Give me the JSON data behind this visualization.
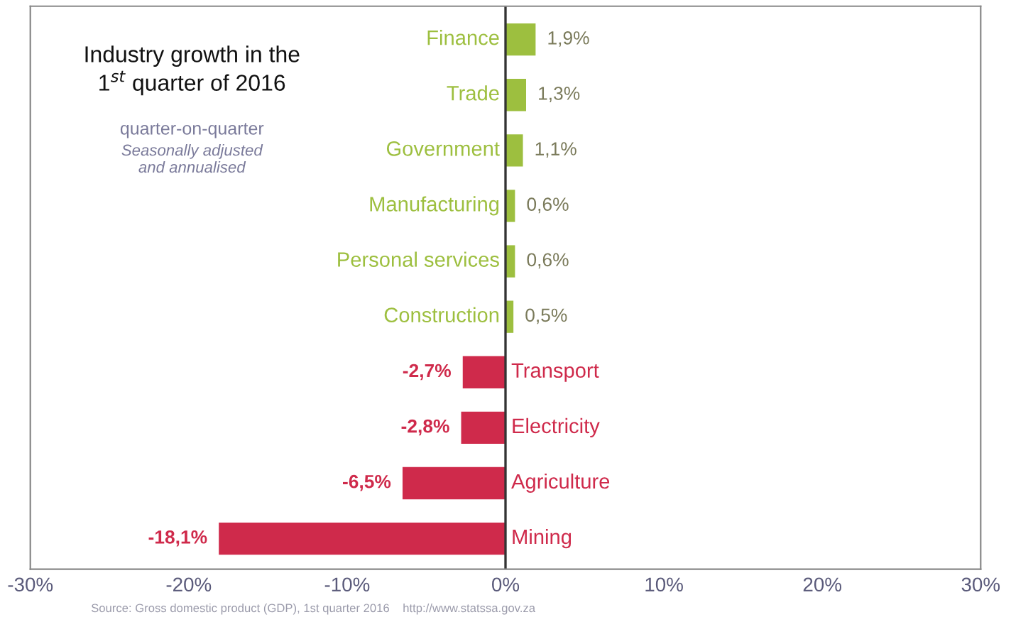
{
  "chart_data": {
    "type": "bar",
    "orientation": "horizontal",
    "title": "Industry growth in the\n1$^{st}$ quarter of 2016",
    "subtitle": "quarter-on-quarter",
    "annotations": [
      "Seasonally adjusted\nand annualised",
      "Source: Gross domestic product (GDP), 1st quarter 2016    http://www.statssa.gov.za"
    ],
    "categories": [
      "Finance",
      "Trade",
      "Government",
      "Manufacturing",
      "Personal services",
      "Construction",
      "Transport",
      "Electricity",
      "Agriculture",
      "Mining"
    ],
    "values": [
      1.9,
      1.3,
      1.1,
      0.6,
      0.6,
      0.5,
      -2.7,
      -2.8,
      -6.5,
      -18.1
    ],
    "value_labels": [
      "1,9%",
      "1,3%",
      "1,1%",
      "0,6%",
      "0,6%",
      "0,5%",
      "-2,7%",
      "-2,8%",
      "-6,5%",
      "-18,1%"
    ],
    "colors": [
      "#9dbf3f",
      "#9dbf3f",
      "#9dbf3f",
      "#9dbf3f",
      "#9dbf3f",
      "#9dbf3f",
      "#cf2a4b",
      "#cf2a4b",
      "#cf2a4b",
      "#cf2a4b"
    ],
    "xlim": [
      -30,
      30
    ],
    "xticks": [
      {
        "value": -30,
        "label": "-30%"
      },
      {
        "value": -20,
        "label": "-20%"
      },
      {
        "value": -10,
        "label": "-10%"
      },
      {
        "value": 0,
        "label": "0%"
      },
      {
        "value": 10,
        "label": "10%"
      },
      {
        "value": 20,
        "label": "20%"
      },
      {
        "value": 30,
        "label": "30%"
      }
    ],
    "grid": false,
    "legend": false
  }
}
